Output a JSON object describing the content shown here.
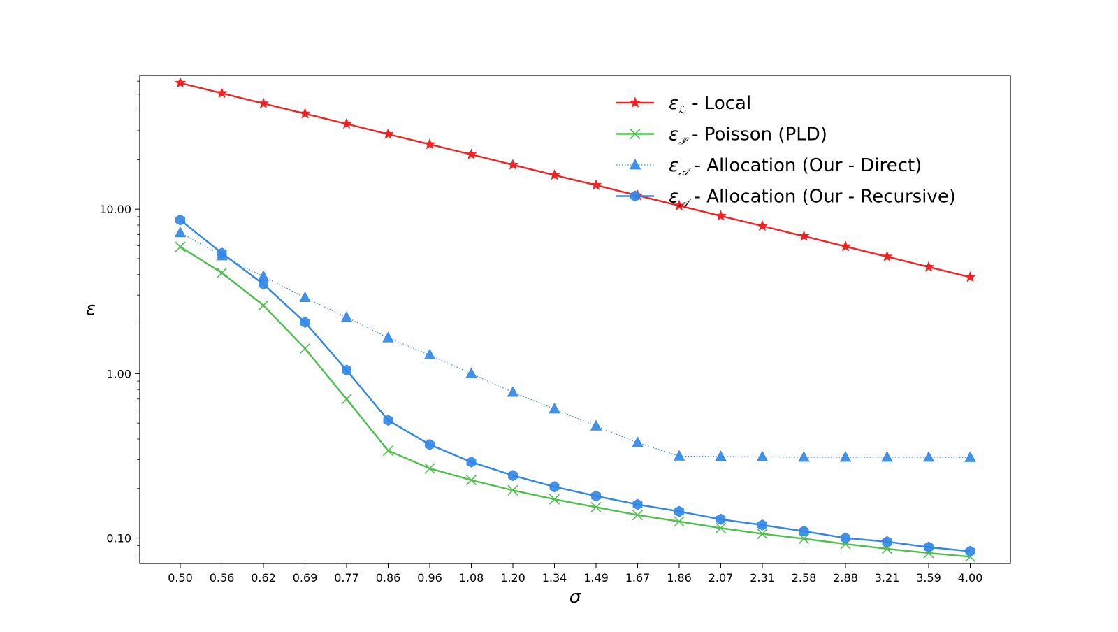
{
  "chart_data": {
    "type": "line",
    "title": "",
    "xlabel": "σ",
    "ylabel": "ε",
    "yscale": "log",
    "ylim": [
      0.07,
      65
    ],
    "y_ticks": [
      {
        "value": 10,
        "label": "10.00"
      },
      {
        "value": 1,
        "label": "1.00"
      },
      {
        "value": 0.1,
        "label": "0.10"
      }
    ],
    "x_categories": [
      "0.50",
      "0.56",
      "0.62",
      "0.69",
      "0.77",
      "0.86",
      "0.96",
      "1.08",
      "1.20",
      "1.34",
      "1.49",
      "1.67",
      "1.86",
      "2.07",
      "2.31",
      "2.58",
      "2.88",
      "3.21",
      "3.59",
      "4.00"
    ],
    "legend_position": "top-right",
    "grid": false,
    "series": [
      {
        "name": "Local",
        "legend_symbol": "ε",
        "legend_subscript": "ℒ",
        "legend_text": " - Local",
        "color": "#f22222",
        "marker": "star",
        "linestyle": "solid",
        "values": [
          58.5,
          50.7,
          43.9,
          38.1,
          33.0,
          28.6,
          24.8,
          21.5,
          18.6,
          16.1,
          14.0,
          12.1,
          10.5,
          9.1,
          7.9,
          6.85,
          5.93,
          5.14,
          4.45,
          3.86
        ]
      },
      {
        "name": "Poisson (PLD)",
        "legend_symbol": "ε",
        "legend_subscript": "𝒫",
        "legend_text": " - Poisson (PLD)",
        "color": "#4cbf4c",
        "marker": "x",
        "linestyle": "solid",
        "values": [
          5.9,
          4.1,
          2.6,
          1.42,
          0.7,
          0.34,
          0.265,
          0.225,
          0.195,
          0.172,
          0.154,
          0.138,
          0.126,
          0.115,
          0.106,
          0.099,
          0.092,
          0.086,
          0.081,
          0.077
        ]
      },
      {
        "name": "Allocation (Our - Direct)",
        "legend_symbol": "ε",
        "legend_subscript": "𝒜",
        "legend_text": " - Allocation (Our - Direct)",
        "color": "#2f86e6",
        "marker": "triangle",
        "linestyle": "dotted",
        "values": [
          7.2,
          5.2,
          3.9,
          2.9,
          2.2,
          1.65,
          1.3,
          1.0,
          0.77,
          0.61,
          0.48,
          0.38,
          0.315,
          0.313,
          0.312,
          0.31,
          0.31,
          0.31,
          0.31,
          0.309
        ]
      },
      {
        "name": "Allocation (Our - Recursive)",
        "legend_symbol": "ε",
        "legend_subscript": "𝒜",
        "legend_text": " - Allocation (Our - Recursive)",
        "color": "#2f86e6",
        "marker": "hexagon",
        "linestyle": "solid",
        "values": [
          8.6,
          5.4,
          3.5,
          2.05,
          1.05,
          0.52,
          0.37,
          0.29,
          0.24,
          0.205,
          0.18,
          0.16,
          0.145,
          0.13,
          0.12,
          0.11,
          0.1,
          0.095,
          0.088,
          0.083
        ]
      }
    ]
  }
}
